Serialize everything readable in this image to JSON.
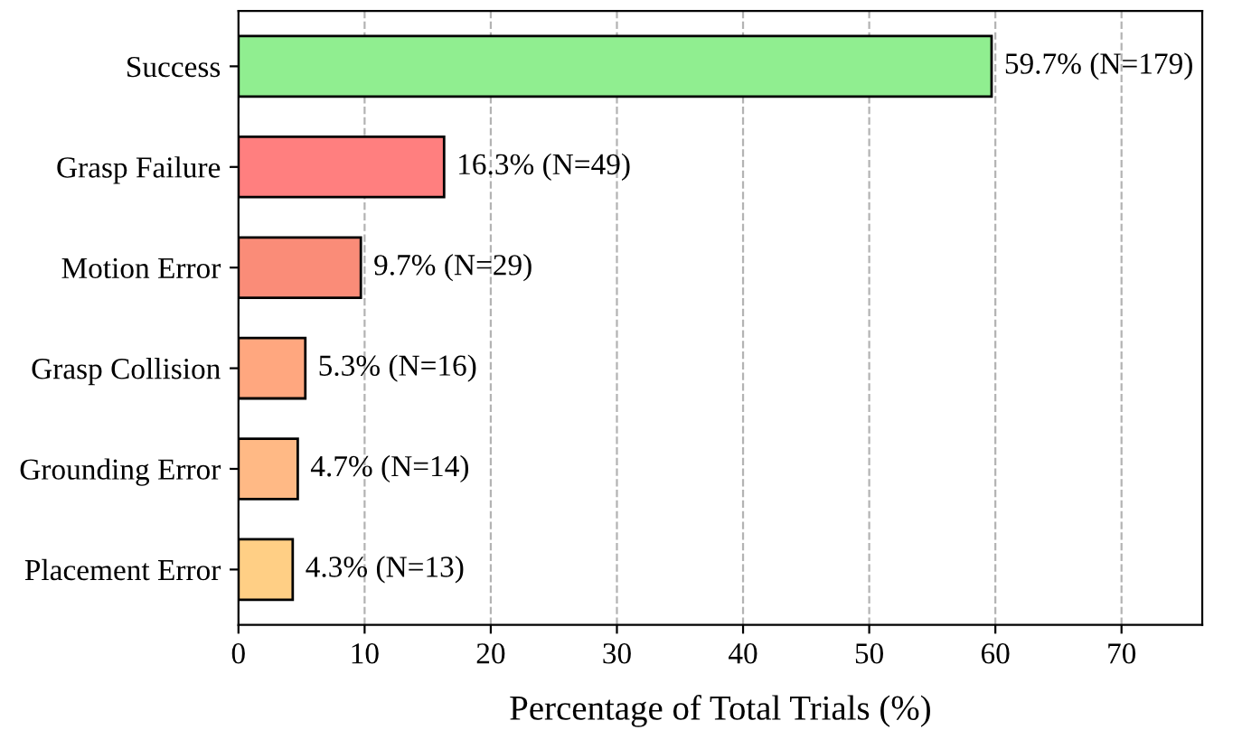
{
  "chart_data": {
    "type": "bar",
    "orientation": "horizontal",
    "categories": [
      "Success",
      "Grasp Failure",
      "Motion Error",
      "Grasp Collision",
      "Grounding Error",
      "Placement Error"
    ],
    "values": [
      59.7,
      16.3,
      9.7,
      5.3,
      4.7,
      4.3
    ],
    "colors": [
      "#90ee90",
      "#ff7f7f",
      "#fa8c78",
      "#ffa77f",
      "#ffb985",
      "#ffcf85"
    ],
    "value_labels": [
      "59.7% (N=179)",
      "16.3% (N=49)",
      "9.7% (N=29)",
      "5.3% (N=16)",
      "4.7% (N=14)",
      "4.3% (N=13)"
    ],
    "xlabel": "Percentage of Total Trials (%)",
    "xlim": [
      0,
      76.4
    ],
    "xticks": [
      0,
      10,
      20,
      30,
      40,
      50,
      60,
      70
    ],
    "grid": "x",
    "line_style": "dashed"
  }
}
